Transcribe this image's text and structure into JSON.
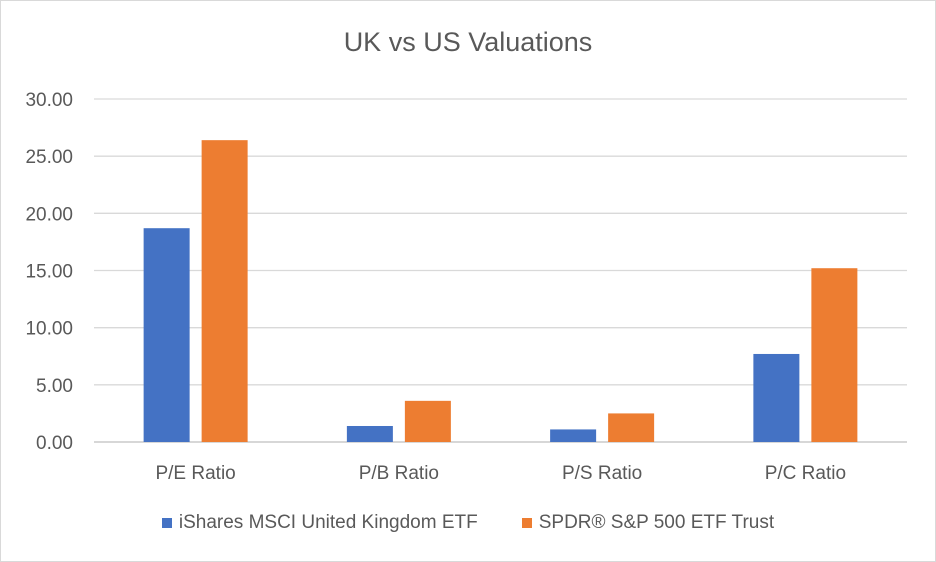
{
  "chart_data": {
    "type": "bar",
    "title": "UK vs US Valuations",
    "xlabel": "",
    "ylabel": "",
    "categories": [
      "P/E Ratio",
      "P/B Ratio",
      "P/S Ratio",
      "P/C Ratio"
    ],
    "series": [
      {
        "name": "iShares MSCI United Kingdom ETF",
        "color": "#4472c4",
        "values": [
          18.7,
          1.4,
          1.1,
          7.7
        ]
      },
      {
        "name": "SPDR® S&P 500 ETF Trust",
        "color": "#ed7d31",
        "values": [
          26.4,
          3.6,
          2.5,
          15.2
        ]
      }
    ],
    "ylim": [
      0,
      30
    ],
    "yticks": [
      "0.00",
      "5.00",
      "10.00",
      "15.00",
      "20.00",
      "25.00",
      "30.00"
    ],
    "grid": true,
    "legend_position": "bottom"
  }
}
